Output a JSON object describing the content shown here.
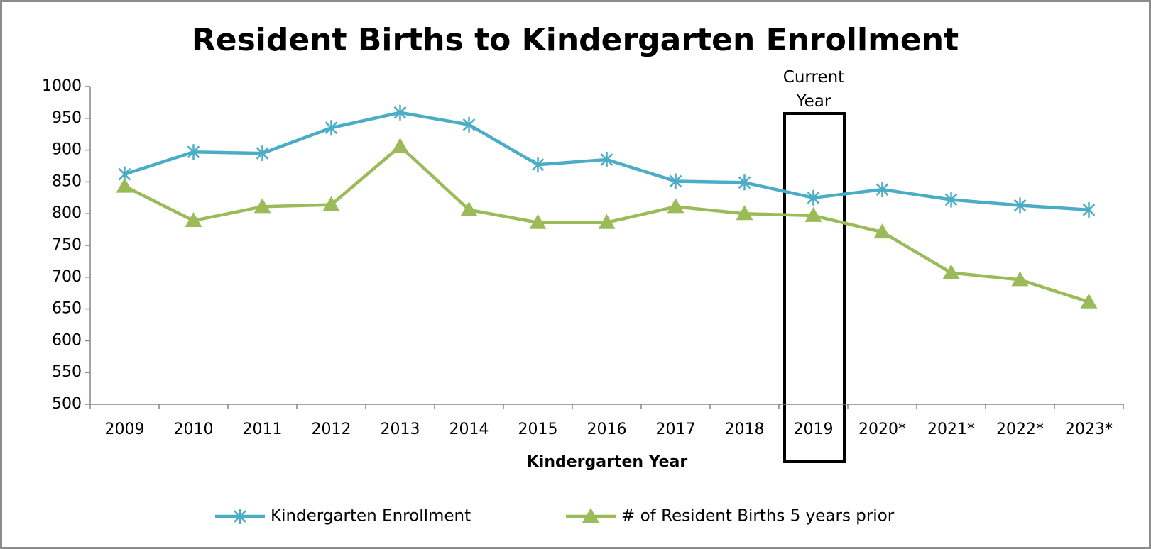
{
  "chart_data": {
    "type": "line",
    "title": "Resident Births to Kindergarten Enrollment",
    "x_label": "Kindergarten Year",
    "annotation": "Current Year",
    "categories": [
      "2009",
      "2010",
      "2011",
      "2012",
      "2013",
      "2014",
      "2015",
      "2016",
      "2017",
      "2018",
      "2019",
      "2020*",
      "2021*",
      "2022*",
      "2023*"
    ],
    "series": [
      {
        "name": "Kindergarten Enrollment",
        "color": "#4bacc6",
        "marker": "asterisk",
        "values": [
          862,
          897,
          895,
          935,
          959,
          940,
          877,
          885,
          851,
          849,
          825,
          838,
          822,
          813,
          806
        ]
      },
      {
        "name": "# of Resident Births 5 years prior",
        "color": "#9bbb59",
        "marker": "triangle",
        "values": [
          843,
          789,
          811,
          814,
          906,
          806,
          786,
          786,
          811,
          800,
          797,
          771,
          707,
          696,
          661
        ]
      }
    ],
    "ylim": [
      500,
      1000
    ],
    "yticks": [
      500,
      550,
      600,
      650,
      700,
      750,
      800,
      850,
      900,
      950,
      1000
    ],
    "legend": "bottom"
  }
}
